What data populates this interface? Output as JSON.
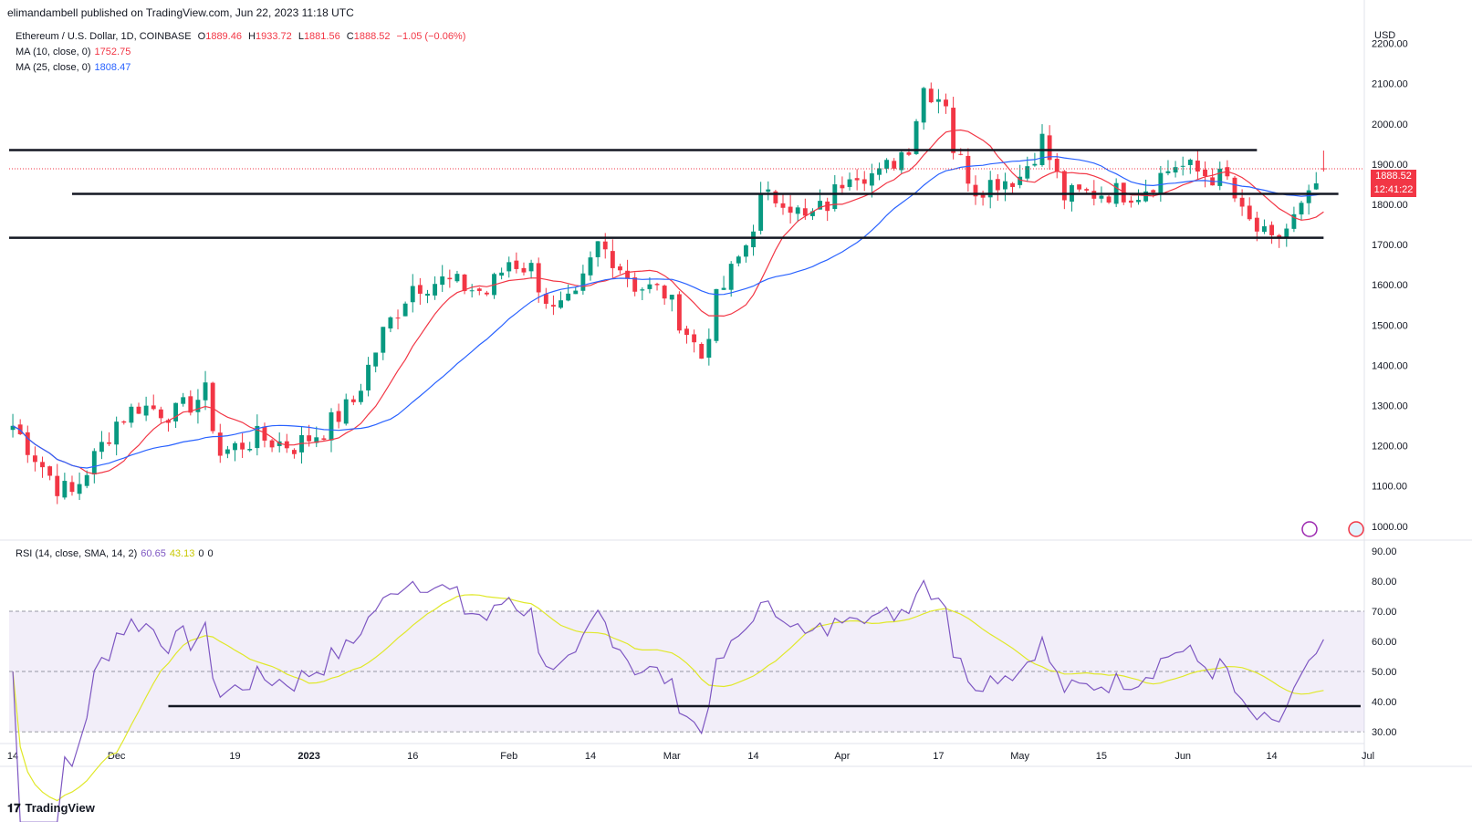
{
  "header": {
    "published": "elimandambell published on TradingView.com, Jun 22, 2023 11:18 UTC"
  },
  "legend": {
    "symbol": "Ethereum / U.S. Dollar, 1D, COINBASE",
    "o_label": "O",
    "o": "1889.46",
    "h_label": "H",
    "h": "1933.72",
    "l_label": "L",
    "l": "1881.56",
    "c_label": "C",
    "c": "1888.52",
    "chg": "−1.05 (−0.06%)",
    "ma10_label": "MA (10, close, 0)",
    "ma10": "1752.75",
    "ma25_label": "MA (25, close, 0)",
    "ma25": "1808.47",
    "rsi_label": "RSI (14, close, SMA, 14, 2)",
    "rsi": "60.65",
    "rsi_sma": "43.13",
    "rsi_a": "0",
    "rsi_b": "0"
  },
  "price_tag": {
    "price": "1888.52",
    "countdown": "12:41:22"
  },
  "footer": {
    "brand": "TradingView"
  },
  "colors": {
    "up": "#089981",
    "down": "#f23645",
    "ma10": "#f23645",
    "ma25": "#2962ff",
    "rsi": "#7e57c2",
    "rsi_sma": "#e0e82a",
    "level": "#131722"
  },
  "chart_data": {
    "type": "candlestick",
    "price_axis": {
      "currency": "USD",
      "ticks": [
        1000,
        1100,
        1200,
        1300,
        1400,
        1500,
        1600,
        1700,
        1800,
        1900,
        2000,
        2100,
        2200
      ],
      "tick_labels": [
        "1000.00",
        "1100.00",
        "1200.00",
        "1300.00",
        "1400.00",
        "1500.00",
        "1600.00",
        "1700.00",
        "1800.00",
        "1900.00",
        "2000.00",
        "2100.00",
        "2200.00"
      ],
      "ylim": [
        970,
        2240
      ]
    },
    "rsi_axis": {
      "ticks": [
        30,
        40,
        50,
        60,
        70,
        80,
        90
      ],
      "tick_labels": [
        "30.00",
        "40.00",
        "50.00",
        "60.00",
        "70.00",
        "80.00",
        "90.00"
      ],
      "ylim": [
        27,
        93
      ],
      "band": [
        30,
        70
      ]
    },
    "time_axis": {
      "labels": [
        "14",
        "Dec",
        "19",
        "2023",
        "16",
        "Feb",
        "14",
        "Mar",
        "14",
        "Apr",
        "17",
        "May",
        "15",
        "Jun",
        "14",
        "Jul"
      ],
      "label_index": [
        0,
        14,
        30,
        40,
        54,
        67,
        78,
        89,
        100,
        112,
        125,
        136,
        147,
        158,
        170,
        183
      ]
    },
    "levels": [
      {
        "price": 1935,
        "from": 0,
        "to": 168
      },
      {
        "price": 1826,
        "from": 8,
        "to": 179
      },
      {
        "price": 1717,
        "from": 0,
        "to": 177
      }
    ],
    "rsi_levels": [
      {
        "value": 38.5,
        "from": 21,
        "to": 182
      }
    ],
    "anchors": [
      [
        0,
        1250
      ],
      [
        6,
        1100
      ],
      [
        8,
        1080
      ],
      [
        12,
        1200
      ],
      [
        14,
        1260
      ],
      [
        17,
        1300
      ],
      [
        22,
        1280
      ],
      [
        26,
        1330
      ],
      [
        28,
        1180
      ],
      [
        33,
        1220
      ],
      [
        38,
        1200
      ],
      [
        42,
        1240
      ],
      [
        46,
        1310
      ],
      [
        50,
        1480
      ],
      [
        54,
        1600
      ],
      [
        58,
        1610
      ],
      [
        64,
        1580
      ],
      [
        67,
        1660
      ],
      [
        70,
        1640
      ],
      [
        73,
        1530
      ],
      [
        76,
        1560
      ],
      [
        79,
        1700
      ],
      [
        81,
        1670
      ],
      [
        84,
        1600
      ],
      [
        88,
        1580
      ],
      [
        93,
        1420
      ],
      [
        95,
        1560
      ],
      [
        99,
        1700
      ],
      [
        101,
        1810
      ],
      [
        104,
        1820
      ],
      [
        107,
        1760
      ],
      [
        110,
        1800
      ],
      [
        113,
        1890
      ],
      [
        117,
        1870
      ],
      [
        121,
        1950
      ],
      [
        123,
        2090
      ],
      [
        126,
        2060
      ],
      [
        127,
        1940
      ],
      [
        130,
        1840
      ],
      [
        133,
        1860
      ],
      [
        136,
        1870
      ],
      [
        139,
        1960
      ],
      [
        142,
        1820
      ],
      [
        147,
        1830
      ],
      [
        152,
        1830
      ],
      [
        157,
        1900
      ],
      [
        160,
        1880
      ],
      [
        164,
        1860
      ],
      [
        166,
        1770
      ],
      [
        170,
        1700
      ],
      [
        172,
        1740
      ],
      [
        175,
        1810
      ],
      [
        177,
        1889
      ]
    ],
    "last_candle": {
      "open": 1889.46,
      "high": 1933.72,
      "low": 1881.56,
      "close": 1888.52
    },
    "ma10_last": 1752.75,
    "ma25_last": 1808.47,
    "rsi_last": 60.65,
    "rsi_sma_last": 43.13
  }
}
